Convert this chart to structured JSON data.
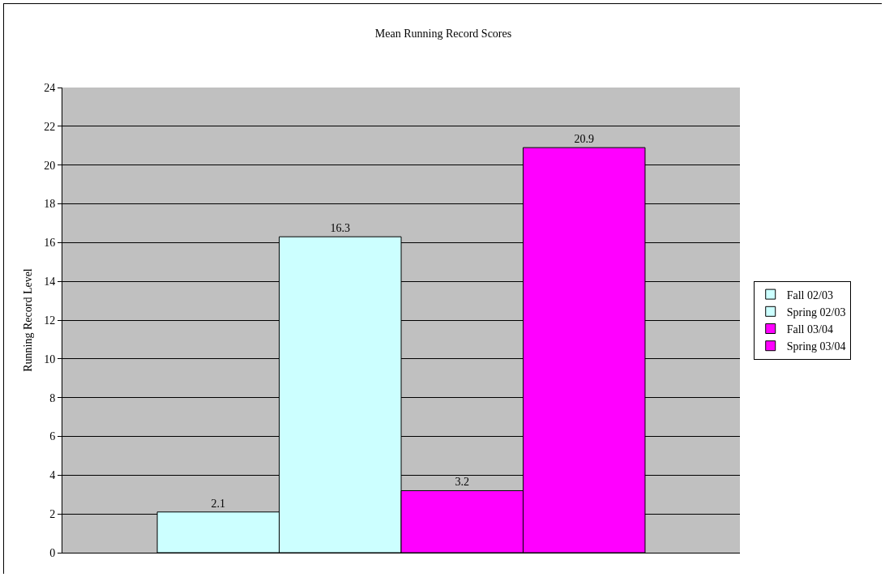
{
  "chart_data": {
    "type": "bar",
    "title": "Mean Running Record Scores",
    "ylabel": "Running Record Level",
    "categories": [
      null
    ],
    "series": [
      {
        "name": "Fall 02/03",
        "color": "#ccffff",
        "values": [
          2.1
        ]
      },
      {
        "name": "Spring 02/03",
        "color": "#ccffff",
        "values": [
          16.3
        ]
      },
      {
        "name": "Fall 03/04",
        "color": "#ff00ff",
        "values": [
          3.2
        ]
      },
      {
        "name": "Spring 03/04",
        "color": "#ff00ff",
        "values": [
          20.9
        ]
      }
    ],
    "ylim": [
      0,
      24
    ],
    "yticks": [
      0,
      2,
      4,
      6,
      8,
      10,
      12,
      14,
      16,
      18,
      20,
      22,
      24
    ],
    "grid": "y",
    "legend": "right",
    "data_labels": true,
    "tick_labels": "y"
  }
}
